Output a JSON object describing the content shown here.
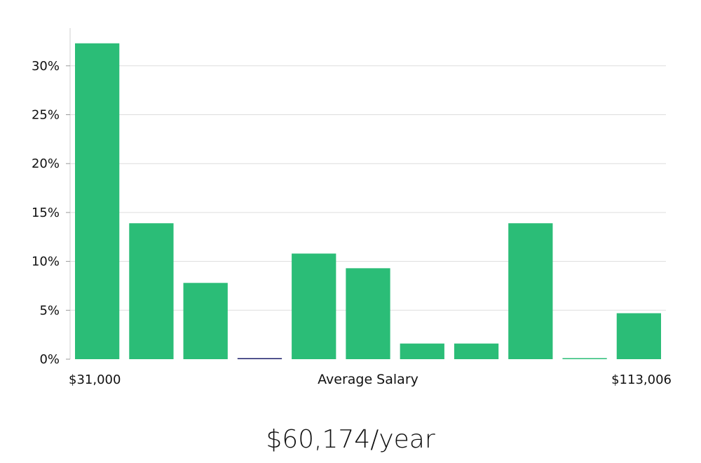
{
  "chart_data": {
    "type": "bar",
    "title": "",
    "xlabel": "Average Salary",
    "ylabel": "",
    "x_min_label": "$31,000",
    "x_max_label": "$113,006",
    "ylim": [
      0,
      33
    ],
    "yticks": [
      0,
      5,
      10,
      15,
      20,
      25,
      30
    ],
    "ytick_labels": [
      "0%",
      "5%",
      "10%",
      "15%",
      "20%",
      "25%",
      "30%"
    ],
    "values": [
      32.3,
      13.9,
      7.8,
      0.0,
      10.8,
      9.3,
      1.6,
      1.6,
      13.9,
      0.0,
      4.7
    ],
    "bar_color": "#2bbd77",
    "zero_bar_color": "#1c1f6b"
  },
  "summary": {
    "average_salary": "$60,174/year"
  }
}
